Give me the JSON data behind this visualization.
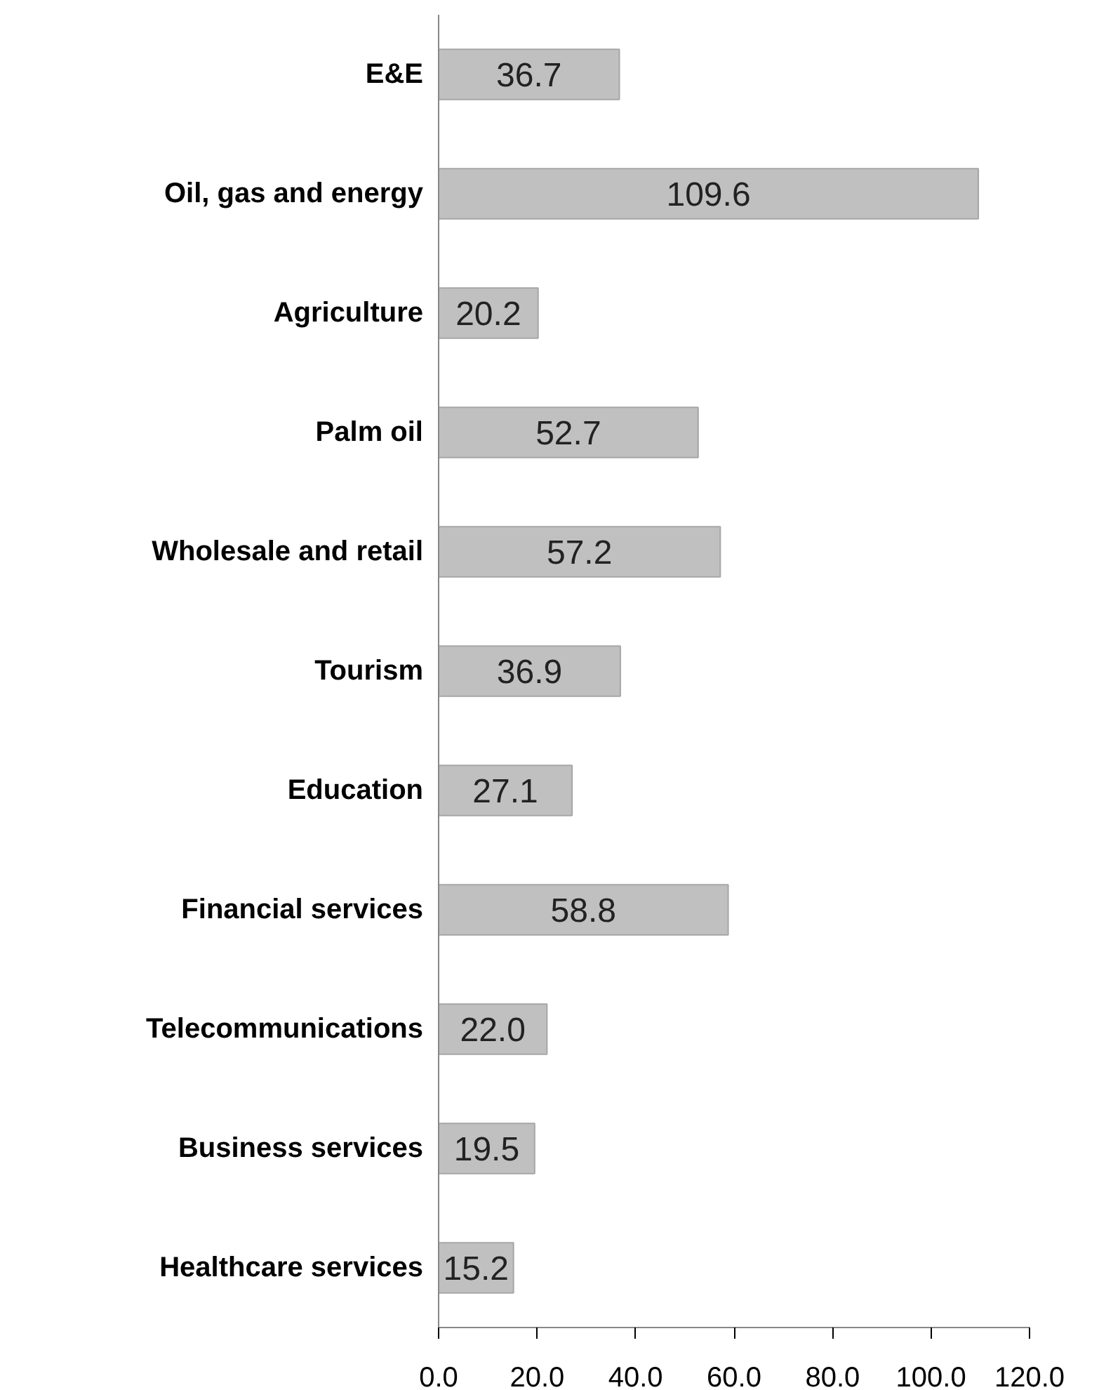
{
  "chart_data": {
    "type": "bar",
    "orientation": "horizontal",
    "categories": [
      "E&E",
      "Oil, gas and energy",
      "Agriculture",
      "Palm oil",
      "Wholesale and retail",
      "Tourism",
      "Education",
      "Financial services",
      "Telecommunications",
      "Business services",
      "Healthcare services"
    ],
    "values": [
      36.7,
      109.6,
      20.2,
      52.7,
      57.2,
      36.9,
      27.1,
      58.8,
      22.0,
      19.5,
      15.2
    ],
    "value_labels": [
      "36.7",
      "109.6",
      "20.2",
      "52.7",
      "57.2",
      "36.9",
      "27.1",
      "58.8",
      "22.0",
      "19.5",
      "15.2"
    ],
    "color": "#c0c0c0",
    "xlim": [
      0,
      120
    ],
    "xticks": [
      {
        "value": 0,
        "label": "0.0"
      },
      {
        "value": 20,
        "label": "20.0"
      },
      {
        "value": 40,
        "label": "40.0"
      },
      {
        "value": 60,
        "label": "60.0"
      },
      {
        "value": 80,
        "label": "80.0"
      },
      {
        "value": 100,
        "label": "100.0"
      },
      {
        "value": 120,
        "label": "120.0"
      }
    ],
    "grid": false
  }
}
